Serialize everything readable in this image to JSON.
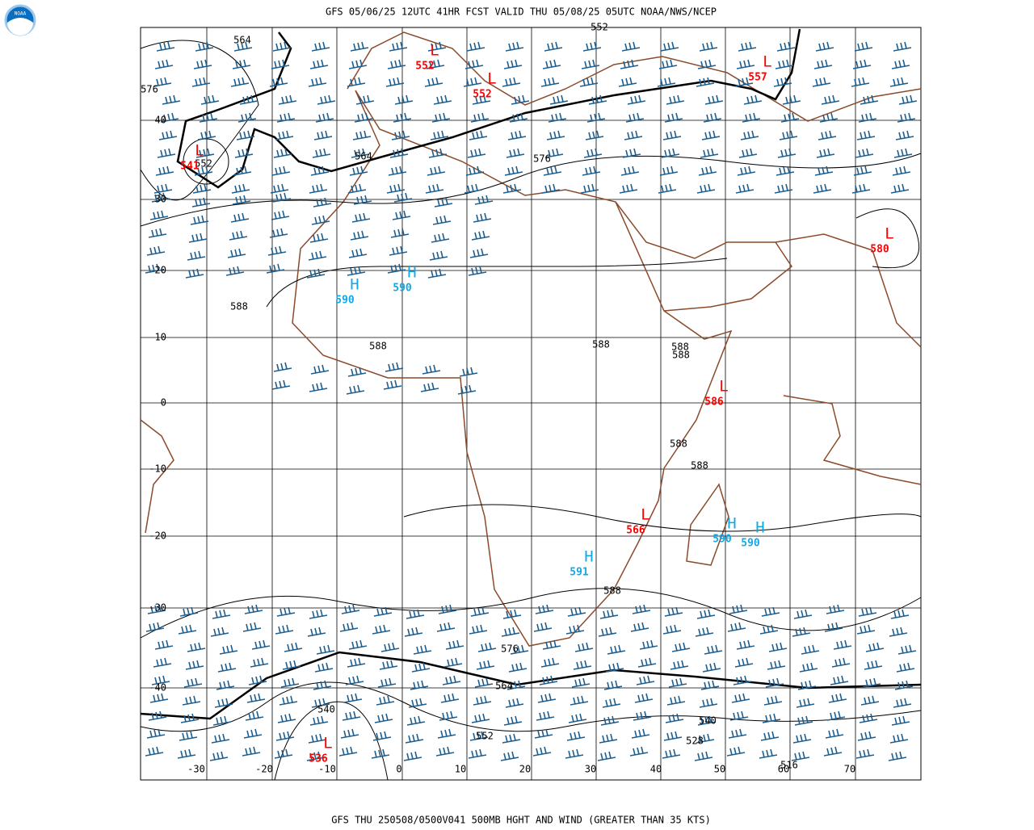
{
  "header": {
    "logo": "NOAA",
    "title": "GFS 05/06/25 12UTC 41HR FCST VALID THU 05/08/25 05UTC NOAA/NWS/NCEP"
  },
  "footer": {
    "caption": "GFS THU 250508/0500V041 500MB HGHT AND WIND (GREATER THAN 35 KTS)"
  },
  "map": {
    "lat_labels": [
      "40",
      "30",
      "20",
      "10",
      "0",
      "-10",
      "-20",
      "-30",
      "-40"
    ],
    "lon_labels": [
      "-30",
      "-20",
      "-10",
      "0",
      "10",
      "20",
      "30",
      "40",
      "50",
      "60",
      "70"
    ],
    "centers": [
      {
        "letter": "L",
        "value": "552"
      },
      {
        "letter": "L",
        "value": "552"
      },
      {
        "letter": "L",
        "value": "557"
      },
      {
        "letter": "L",
        "value": "541"
      },
      {
        "letter": "L",
        "value": "580"
      },
      {
        "letter": "H",
        "value": "590"
      },
      {
        "letter": "H",
        "value": "590"
      },
      {
        "letter": "L",
        "value": "586"
      },
      {
        "letter": "L",
        "value": "566"
      },
      {
        "letter": "H",
        "value": "590"
      },
      {
        "letter": "H",
        "value": "590"
      },
      {
        "letter": "H",
        "value": "591"
      },
      {
        "letter": "L",
        "value": "536"
      }
    ],
    "contour_labels": [
      "564",
      "576",
      "564",
      "576",
      "552",
      "588",
      "588",
      "588",
      "588",
      "588",
      "588",
      "588",
      "588",
      "576",
      "564",
      "540",
      "552",
      "540",
      "528",
      "516",
      "552"
    ]
  }
}
